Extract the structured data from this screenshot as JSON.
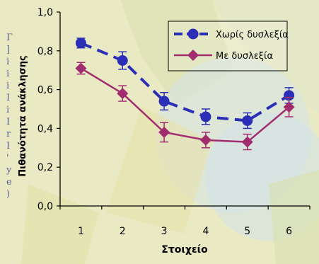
{
  "chart_data": {
    "type": "line",
    "x": [
      1,
      2,
      3,
      4,
      5,
      6
    ],
    "xlabel": "Στοιχείο",
    "ylabel": "Πιθανότητα ανάκλησης",
    "ylim": [
      0.0,
      1.0
    ],
    "xlim": [
      0.5,
      6.5
    ],
    "y_tick_labels": [
      "0,0",
      "0,2",
      "0,4",
      "0,6",
      "0,8",
      "1,0"
    ],
    "x_tick_labels": [
      "1",
      "2",
      "3",
      "4",
      "5",
      "6"
    ],
    "grid": false,
    "legend_position": "top-right",
    "series": [
      {
        "name": "Χωρίς δυσλεξία",
        "values": [
          0.84,
          0.75,
          0.54,
          0.46,
          0.44,
          0.57
        ],
        "error": [
          0.025,
          0.045,
          0.045,
          0.04,
          0.04,
          0.04
        ],
        "color": "#2a2fb6",
        "marker": "circle",
        "line_style": "dashed"
      },
      {
        "name": "Με δυσλεξία",
        "values": [
          0.71,
          0.58,
          0.38,
          0.34,
          0.33,
          0.51
        ],
        "error": [
          0.03,
          0.04,
          0.05,
          0.04,
          0.04,
          0.05
        ],
        "color": "#a22d6e",
        "marker": "diamond",
        "line_style": "solid"
      }
    ]
  },
  "left_strip_glyphs": [
    "Γ",
    "]",
    "i",
    "i",
    "i",
    "I",
    "i",
    "I",
    "r",
    "I",
    "'",
    "y",
    "e",
    ")"
  ],
  "colors": {
    "page_background": "#e9eac4",
    "axis": "#000000",
    "label_text": "#000000",
    "strip_text": "#5a5f95"
  }
}
